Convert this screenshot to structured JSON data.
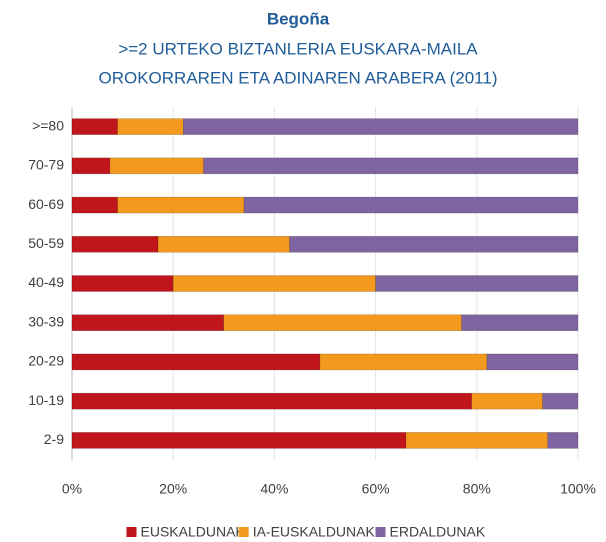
{
  "chart_data": {
    "type": "stacked_barh",
    "title": "Begoña",
    "subtitle": [
      ">=2 URTEKO BIZTANLERIA EUSKARA-MAILA",
      "OROKORRAREN ETA ADINAREN ARABERA (2011)"
    ],
    "categories": [
      ">=80",
      "70-79",
      "60-69",
      "50-59",
      "40-49",
      "30-39",
      "20-29",
      "10-19",
      "2-9"
    ],
    "series": [
      {
        "name": "EUSKALDUNAK",
        "color": "#c0161b",
        "values": [
          9,
          7.5,
          9,
          17,
          20,
          30,
          49,
          79,
          66
        ]
      },
      {
        "name": "IA-EUSKALDUNAK",
        "color": "#f39a1e",
        "values": [
          13,
          18.5,
          25,
          26,
          40,
          47,
          33,
          14,
          28
        ]
      },
      {
        "name": "ERDALDUNAK",
        "color": "#8064a2",
        "values": [
          78,
          74,
          66,
          57,
          40,
          23,
          18,
          7,
          6
        ]
      }
    ],
    "xlim": [
      0,
      100
    ],
    "xticks": [
      {
        "value": 0,
        "label": "0%"
      },
      {
        "value": 20,
        "label": "20%"
      },
      {
        "value": 40,
        "label": "40%"
      },
      {
        "value": 60,
        "label": "60%"
      },
      {
        "value": 80,
        "label": "80%"
      },
      {
        "value": 100,
        "label": "100%"
      }
    ],
    "grid": true,
    "legend": "bottom"
  }
}
